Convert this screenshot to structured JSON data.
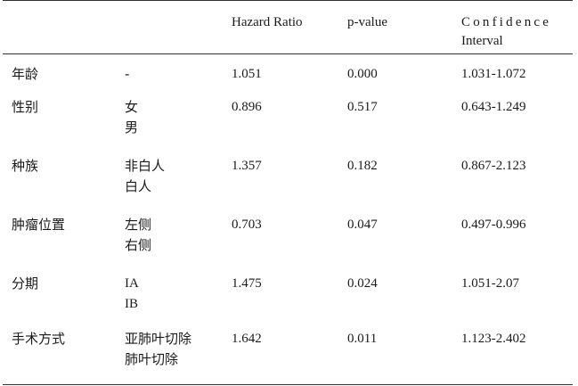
{
  "header": {
    "col1": "",
    "col2": "",
    "hazard_ratio": "Hazard Ratio",
    "p_value": "p-value",
    "ci_line1": "Confidence",
    "ci_line2": "Interval"
  },
  "rows": [
    {
      "variable": "年龄",
      "levels": [
        "-"
      ],
      "hr": "1.051",
      "p": "0.000",
      "ci": "1.031-1.072"
    },
    {
      "variable": "性别",
      "levels": [
        "女",
        "男"
      ],
      "hr": "0.896",
      "p": "0.517",
      "ci": "0.643-1.249"
    },
    {
      "variable": "种族",
      "levels": [
        "非白人",
        "白人"
      ],
      "hr": "1.357",
      "p": "0.182",
      "ci": "0.867-2.123"
    },
    {
      "variable": "肿瘤位置",
      "levels": [
        "左侧",
        "右侧"
      ],
      "hr": "0.703",
      "p": "0.047",
      "ci": "0.497-0.996"
    },
    {
      "variable": "分期",
      "levels": [
        "IA",
        "IB"
      ],
      "hr": "1.475",
      "p": "0.024",
      "ci": "1.051-2.07"
    },
    {
      "variable": "手术方式",
      "levels": [
        "亚肺叶切除",
        "肺叶切除"
      ],
      "hr": "1.642",
      "p": "0.011",
      "ci": "1.123-2.402"
    }
  ]
}
